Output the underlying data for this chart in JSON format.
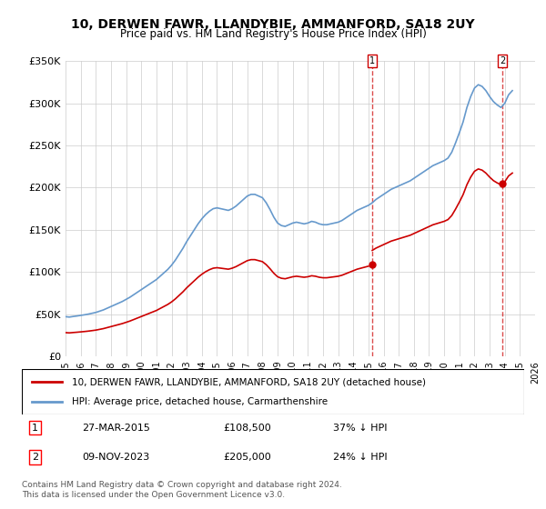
{
  "title": "10, DERWEN FAWR, LLANDYBIE, AMMANFORD, SA18 2UY",
  "subtitle": "Price paid vs. HM Land Registry's House Price Index (HPI)",
  "legend_line1": "10, DERWEN FAWR, LLANDYBIE, AMMANFORD, SA18 2UY (detached house)",
  "legend_line2": "HPI: Average price, detached house, Carmarthenshire",
  "annotation1_label": "1",
  "annotation1_date": "27-MAR-2015",
  "annotation1_price": "£108,500",
  "annotation1_hpi": "37% ↓ HPI",
  "annotation1_year": 2015.23,
  "annotation2_label": "2",
  "annotation2_date": "09-NOV-2023",
  "annotation2_price": "£205,000",
  "annotation2_hpi": "24% ↓ HPI",
  "annotation2_year": 2023.86,
  "ylabel": "",
  "xlabel": "",
  "ylim": [
    0,
    350000
  ],
  "xlim_min": 1995,
  "xlim_max": 2026,
  "yticks": [
    0,
    50000,
    100000,
    150000,
    200000,
    250000,
    300000,
    350000
  ],
  "ytick_labels": [
    "£0",
    "£50K",
    "£100K",
    "£150K",
    "£200K",
    "£250K",
    "£300K",
    "£350K"
  ],
  "xticks": [
    1995,
    1996,
    1997,
    1998,
    1999,
    2000,
    2001,
    2002,
    2003,
    2004,
    2005,
    2006,
    2007,
    2008,
    2009,
    2010,
    2011,
    2012,
    2013,
    2014,
    2015,
    2016,
    2017,
    2018,
    2019,
    2020,
    2021,
    2022,
    2023,
    2024,
    2025,
    2026
  ],
  "red_line_color": "#cc0000",
  "blue_line_color": "#6699cc",
  "vline_color": "#cc0000",
  "background_color": "#ffffff",
  "grid_color": "#cccccc",
  "footer_text": "Contains HM Land Registry data © Crown copyright and database right 2024.\nThis data is licensed under the Open Government Licence v3.0.",
  "hpi_years": [
    1995.0,
    1995.25,
    1995.5,
    1995.75,
    1996.0,
    1996.25,
    1996.5,
    1996.75,
    1997.0,
    1997.25,
    1997.5,
    1997.75,
    1998.0,
    1998.25,
    1998.5,
    1998.75,
    1999.0,
    1999.25,
    1999.5,
    1999.75,
    2000.0,
    2000.25,
    2000.5,
    2000.75,
    2001.0,
    2001.25,
    2001.5,
    2001.75,
    2002.0,
    2002.25,
    2002.5,
    2002.75,
    2003.0,
    2003.25,
    2003.5,
    2003.75,
    2004.0,
    2004.25,
    2004.5,
    2004.75,
    2005.0,
    2005.25,
    2005.5,
    2005.75,
    2006.0,
    2006.25,
    2006.5,
    2006.75,
    2007.0,
    2007.25,
    2007.5,
    2007.75,
    2008.0,
    2008.25,
    2008.5,
    2008.75,
    2009.0,
    2009.25,
    2009.5,
    2009.75,
    2010.0,
    2010.25,
    2010.5,
    2010.75,
    2011.0,
    2011.25,
    2011.5,
    2011.75,
    2012.0,
    2012.25,
    2012.5,
    2012.75,
    2013.0,
    2013.25,
    2013.5,
    2013.75,
    2014.0,
    2014.25,
    2014.5,
    2014.75,
    2015.0,
    2015.25,
    2015.5,
    2015.75,
    2016.0,
    2016.25,
    2016.5,
    2016.75,
    2017.0,
    2017.25,
    2017.5,
    2017.75,
    2018.0,
    2018.25,
    2018.5,
    2018.75,
    2019.0,
    2019.25,
    2019.5,
    2019.75,
    2020.0,
    2020.25,
    2020.5,
    2020.75,
    2021.0,
    2021.25,
    2021.5,
    2021.75,
    2022.0,
    2022.25,
    2022.5,
    2022.75,
    2023.0,
    2023.25,
    2023.5,
    2023.75,
    2024.0,
    2024.25,
    2024.5
  ],
  "hpi_values": [
    47000,
    46500,
    47200,
    47800,
    48500,
    49200,
    50000,
    51000,
    52000,
    53500,
    55000,
    57000,
    59000,
    61000,
    63000,
    65000,
    67500,
    70000,
    73000,
    76000,
    79000,
    82000,
    85000,
    88000,
    91000,
    95000,
    99000,
    103000,
    108000,
    114000,
    121000,
    128000,
    136000,
    143000,
    150000,
    157000,
    163000,
    168000,
    172000,
    175000,
    176000,
    175000,
    174000,
    173000,
    175000,
    178000,
    182000,
    186000,
    190000,
    192000,
    192000,
    190000,
    188000,
    182000,
    174000,
    165000,
    158000,
    155000,
    154000,
    156000,
    158000,
    159000,
    158000,
    157000,
    158000,
    160000,
    159000,
    157000,
    156000,
    156000,
    157000,
    158000,
    159000,
    161000,
    164000,
    167000,
    170000,
    173000,
    175000,
    177000,
    179000,
    182000,
    186000,
    189000,
    192000,
    195000,
    198000,
    200000,
    202000,
    204000,
    206000,
    208000,
    211000,
    214000,
    217000,
    220000,
    223000,
    226000,
    228000,
    230000,
    232000,
    235000,
    242000,
    253000,
    265000,
    278000,
    295000,
    308000,
    318000,
    322000,
    320000,
    315000,
    308000,
    302000,
    298000,
    295000,
    300000,
    310000,
    315000
  ],
  "sale_years": [
    2015.23,
    2023.86
  ],
  "sale_prices": [
    108500,
    205000
  ]
}
